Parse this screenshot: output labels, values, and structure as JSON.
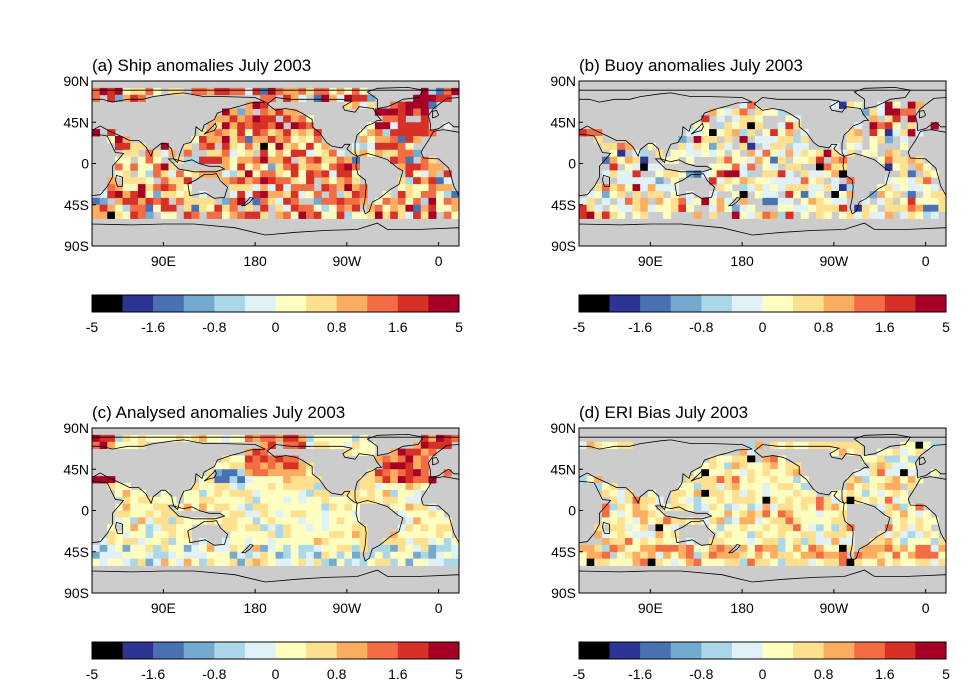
{
  "figure": {
    "colorbar": {
      "colors": [
        "#000000",
        "#2c3596",
        "#4a72b3",
        "#74a9d0",
        "#abd8e8",
        "#e0f2f8",
        "#fefec0",
        "#fee08f",
        "#fcad5f",
        "#f36c43",
        "#d73027",
        "#a60026"
      ],
      "labels": [
        "-5",
        "-1.6",
        "-0.8",
        "0",
        "0.8",
        "1.6",
        "5"
      ]
    },
    "lat_labels": [
      "90N",
      "45N",
      "0",
      "45S",
      "90S"
    ],
    "lon_labels": [
      "90E",
      "180",
      "90W",
      "0"
    ]
  },
  "chart_data": [
    {
      "type": "heatmap",
      "panel": "a",
      "title": "(a) Ship anomalies July 2003",
      "description_of_values": "gridded anomalies on a world map; land grey",
      "lat_ticks": [
        "90N",
        "45N",
        "0",
        "45S",
        "90S"
      ],
      "lon_ticks": [
        "90E",
        "180",
        "90W",
        "0"
      ],
      "colorbar_labels": [
        "-5",
        "-1.6",
        "-0.8",
        "0",
        "0.8",
        "1.6",
        "5"
      ],
      "color_range": [
        -5,
        5
      ],
      "dominant_pattern": "widespread warm anomalies (0.8 to 5) across most ocean areas, strongest in North Atlantic and North Pacific"
    },
    {
      "type": "heatmap",
      "panel": "b",
      "title": "(b) Buoy anomalies July 2003",
      "lat_ticks": [
        "90N",
        "45N",
        "0",
        "45S",
        "90S"
      ],
      "lon_ticks": [
        "90E",
        "180",
        "90W",
        "0"
      ],
      "colorbar_labels": [
        "-5",
        "-1.6",
        "-0.8",
        "0",
        "0.8",
        "1.6",
        "5"
      ],
      "color_range": [
        -5,
        5
      ],
      "dominant_pattern": "sparser coverage; mostly weak positive anomalies with scattered strong values"
    },
    {
      "type": "heatmap",
      "panel": "c",
      "title": "(c) Analysed anomalies July 2003",
      "lat_ticks": [
        "90N",
        "45N",
        "0",
        "45S",
        "90S"
      ],
      "lon_ticks": [
        "90E",
        "180",
        "90W",
        "0"
      ],
      "colorbar_labels": [
        "-5",
        "-1.6",
        "-0.8",
        "0",
        "0.8",
        "1.6",
        "5"
      ],
      "color_range": [
        -5,
        5
      ],
      "dominant_pattern": "smooth field, weak positive anomalies, warm North Atlantic and North Pacific"
    },
    {
      "type": "heatmap",
      "panel": "d",
      "title": "(d) ERI Bias July 2003",
      "lat_ticks": [
        "90N",
        "45N",
        "0",
        "45S",
        "90S"
      ],
      "lon_ticks": [
        "90E",
        "180",
        "90W",
        "0"
      ],
      "colorbar_labels": [
        "-5",
        "-1.6",
        "-0.8",
        "0",
        "0.8",
        "1.6",
        "5"
      ],
      "color_range": [
        -5,
        5
      ],
      "dominant_pattern": "mostly small positive bias (0 to 0.8), some negative near coasts"
    }
  ]
}
